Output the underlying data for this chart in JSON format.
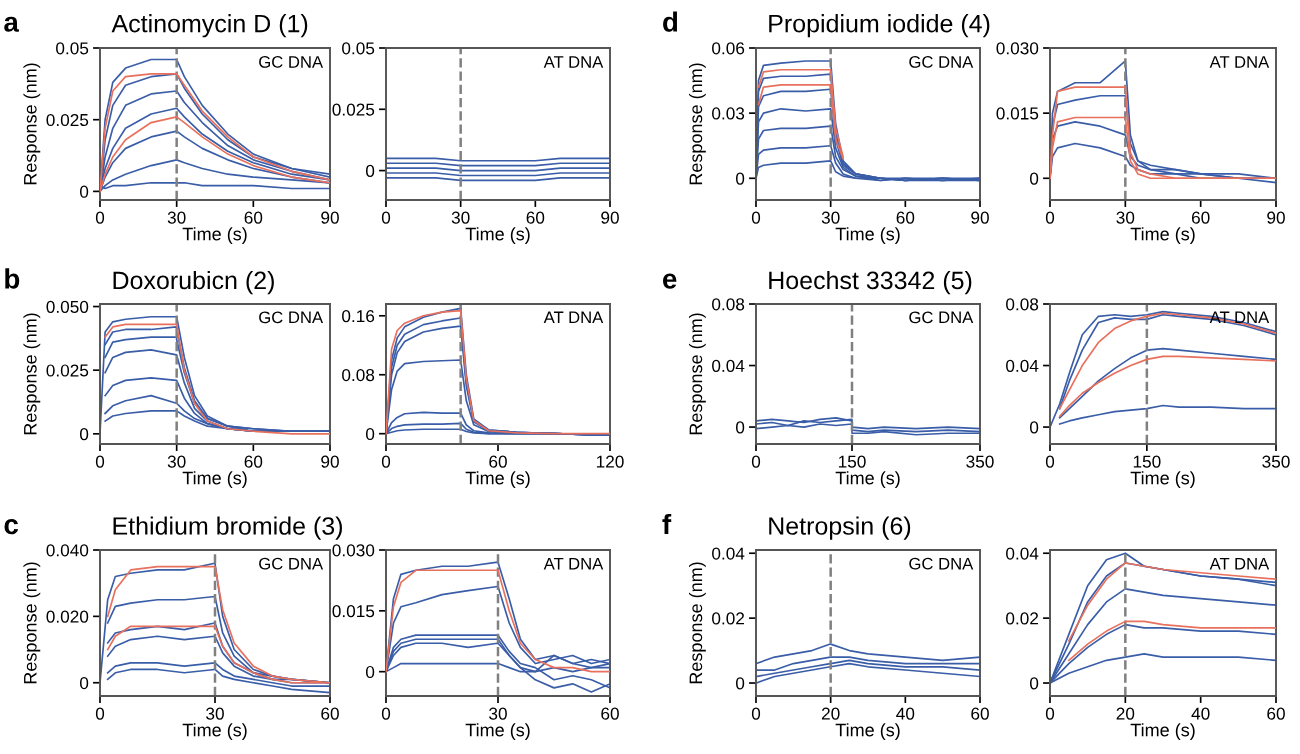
{
  "chart_data": [
    {
      "type": "line",
      "title": "Actinomycin D (1)",
      "ylabel": "Response (nm)",
      "xlabel": "Time (s)",
      "annotations": [
        "a",
        "GC DNA"
      ],
      "xlim": [
        0,
        90
      ],
      "xticks": [
        0,
        30,
        60,
        90
      ],
      "ylim": [
        -0.003,
        0.05
      ],
      "yticks": [
        0,
        0.025,
        0.05
      ],
      "grid": false,
      "legend": false,
      "line_style": "solid",
      "marker": "none",
      "ref_lines": [
        {
          "axis": "x",
          "value": 30,
          "color": "#808080",
          "line_style": "dashed"
        }
      ],
      "x": [
        0,
        2,
        5,
        10,
        20,
        30,
        33,
        40,
        50,
        60,
        75,
        90
      ],
      "series": [
        {
          "color": "#e8705c",
          "values": [
            0,
            0.022,
            0.035,
            0.04,
            0.041,
            0.041,
            0.037,
            0.028,
            0.019,
            0.012,
            0.007,
            0.004
          ]
        },
        {
          "color": "#e8705c",
          "values": [
            0,
            0.006,
            0.012,
            0.018,
            0.024,
            0.026,
            0.024,
            0.019,
            0.013,
            0.009,
            0.005,
            0.003
          ]
        },
        {
          "color": "#3a5da8",
          "values": [
            0,
            0.025,
            0.038,
            0.043,
            0.046,
            0.046,
            0.04,
            0.03,
            0.02,
            0.013,
            0.008,
            0.005
          ]
        },
        {
          "color": "#3a5da8",
          "values": [
            0,
            0.018,
            0.03,
            0.037,
            0.04,
            0.041,
            0.036,
            0.027,
            0.018,
            0.012,
            0.008,
            0.006
          ]
        },
        {
          "color": "#3a5da8",
          "values": [
            0,
            0.012,
            0.022,
            0.03,
            0.034,
            0.035,
            0.031,
            0.024,
            0.016,
            0.011,
            0.007,
            0.004
          ]
        },
        {
          "color": "#3a5da8",
          "values": [
            0,
            0.008,
            0.015,
            0.022,
            0.027,
            0.029,
            0.026,
            0.02,
            0.014,
            0.01,
            0.006,
            0.004
          ]
        },
        {
          "color": "#3a5da8",
          "values": [
            0,
            0.005,
            0.01,
            0.015,
            0.019,
            0.021,
            0.019,
            0.015,
            0.011,
            0.008,
            0.005,
            0.003
          ]
        },
        {
          "color": "#3a5da8",
          "values": [
            0,
            0.002,
            0.004,
            0.006,
            0.009,
            0.011,
            0.01,
            0.008,
            0.006,
            0.005,
            0.004,
            0.003
          ]
        },
        {
          "color": "#3a5da8",
          "values": [
            0.002,
            0.001,
            0.002,
            0.002,
            0.003,
            0.003,
            0.003,
            0.002,
            0.002,
            0.002,
            0.001,
            0.001
          ]
        }
      ]
    },
    {
      "type": "line",
      "xlabel": "Time (s)",
      "annotations": [
        "AT DNA"
      ],
      "xlim": [
        0,
        90
      ],
      "xticks": [
        0,
        30,
        60,
        90
      ],
      "ylim": [
        -0.012,
        0.05
      ],
      "yticks": [
        0,
        0.025,
        0.05
      ],
      "grid": false,
      "legend": false,
      "line_style": "solid",
      "marker": "none",
      "ref_lines": [
        {
          "axis": "x",
          "value": 30,
          "color": "#808080",
          "line_style": "dashed"
        }
      ],
      "x": [
        0,
        10,
        20,
        30,
        40,
        50,
        60,
        70,
        80,
        90
      ],
      "series": [
        {
          "color": "#3a5da8",
          "values": [
            0.005,
            0.005,
            0.005,
            0.004,
            0.004,
            0.004,
            0.004,
            0.005,
            0.005,
            0.005
          ]
        },
        {
          "color": "#3a5da8",
          "values": [
            -0.003,
            -0.003,
            -0.003,
            -0.004,
            -0.004,
            -0.004,
            -0.004,
            -0.003,
            -0.003,
            -0.003
          ]
        },
        {
          "color": "#3a5da8",
          "values": [
            0.001,
            0.001,
            0.001,
            0,
            0,
            0,
            0,
            0.001,
            0.001,
            0.001
          ]
        },
        {
          "color": "#3a5da8",
          "values": [
            -0.001,
            -0.001,
            -0.001,
            -0.002,
            -0.002,
            -0.002,
            -0.002,
            -0.001,
            -0.001,
            -0.001
          ]
        },
        {
          "color": "#3a5da8",
          "values": [
            0.003,
            0.003,
            0.003,
            0.002,
            0.002,
            0.002,
            0.002,
            0.003,
            0.003,
            0.003
          ]
        }
      ]
    },
    {
      "type": "line",
      "title": "Propidium iodide (4)",
      "ylabel": "Response (nm)",
      "xlabel": "Time (s)",
      "annotations": [
        "d",
        "GC DNA"
      ],
      "xlim": [
        0,
        90
      ],
      "xticks": [
        0,
        30,
        60,
        90
      ],
      "ylim": [
        -0.01,
        0.06
      ],
      "yticks": [
        0,
        0.03,
        0.06
      ],
      "grid": false,
      "legend": false,
      "line_style": "solid",
      "marker": "none",
      "ref_lines": [
        {
          "axis": "x",
          "value": 30,
          "color": "#808080",
          "line_style": "dashed"
        }
      ],
      "x": [
        0,
        1,
        3,
        10,
        20,
        29.9,
        30,
        32,
        35,
        40,
        50,
        60,
        75,
        90
      ],
      "series": [
        {
          "color": "#e8705c",
          "values": [
            null,
            0.042,
            0.049,
            0.05,
            0.05,
            0.05,
            0.05,
            0.023,
            0.01,
            null,
            null,
            null,
            null,
            null
          ]
        },
        {
          "color": "#e8705c",
          "values": [
            null,
            0.034,
            0.042,
            0.043,
            0.043,
            0.043,
            0.043,
            0.018,
            0.009,
            null,
            null,
            null,
            null,
            null
          ]
        },
        {
          "color": "#3a5da8",
          "values": [
            0,
            0.045,
            0.052,
            0.053,
            0.054,
            0.054,
            0.054,
            0.025,
            0.008,
            0.002,
            0,
            -0.001,
            0,
            -0.001
          ]
        },
        {
          "color": "#3a5da8",
          "values": [
            0,
            0.04,
            0.046,
            0.047,
            0.047,
            0.048,
            0.048,
            0.021,
            0.007,
            0.002,
            0,
            -0.001,
            -0.001,
            0
          ]
        },
        {
          "color": "#3a5da8",
          "values": [
            0,
            0.033,
            0.038,
            0.04,
            0.04,
            0.041,
            0.041,
            0.018,
            0.006,
            0.002,
            0,
            0,
            -0.001,
            -0.001
          ]
        },
        {
          "color": "#3a5da8",
          "values": [
            0,
            0.026,
            0.03,
            0.032,
            0.031,
            0.032,
            0.032,
            0.014,
            0.005,
            0.001,
            0,
            -0.001,
            0,
            -0.001
          ]
        },
        {
          "color": "#3a5da8",
          "values": [
            0,
            0.018,
            0.022,
            0.023,
            0.023,
            0.024,
            0.024,
            0.01,
            0.004,
            0.001,
            -0.001,
            0,
            -0.001,
            0
          ]
        },
        {
          "color": "#3a5da8",
          "values": [
            0,
            0.011,
            0.013,
            0.014,
            0.014,
            0.015,
            0.015,
            0.007,
            0.002,
            0,
            -0.001,
            0,
            0,
            -0.001
          ]
        },
        {
          "color": "#3a5da8",
          "values": [
            0,
            0.005,
            0.006,
            0.007,
            0.007,
            0.008,
            0.008,
            0.003,
            0.001,
            0,
            0,
            -0.001,
            0,
            0
          ]
        }
      ]
    },
    {
      "type": "line",
      "xlabel": "Time (s)",
      "annotations": [
        "AT DNA"
      ],
      "xlim": [
        0,
        90
      ],
      "xticks": [
        0,
        30,
        60,
        90
      ],
      "ylim": [
        -0.005,
        0.03
      ],
      "yticks": [
        0,
        {
          "value": 0.015,
          "label": "0.015"
        },
        {
          "value": 0.03,
          "label": "0.030"
        }
      ],
      "grid": false,
      "legend": false,
      "line_style": "solid",
      "marker": "none",
      "ref_lines": [
        {
          "axis": "x",
          "value": 30,
          "color": "#808080",
          "line_style": "dashed"
        }
      ],
      "x": [
        0,
        1,
        3,
        10,
        20,
        29.9,
        30,
        32,
        35,
        40,
        50,
        60,
        75,
        90
      ],
      "series": [
        {
          "color": "#e8705c",
          "values": [
            0,
            0.01,
            0.02,
            0.021,
            0.021,
            0.021,
            0.021,
            0.006,
            0.002,
            0.001,
            0,
            0,
            0,
            0
          ]
        },
        {
          "color": "#e8705c",
          "values": [
            0,
            0.007,
            0.013,
            0.014,
            0.014,
            0.014,
            0.014,
            0.004,
            0.001,
            0,
            0,
            0,
            0,
            0
          ]
        },
        {
          "color": "#3a5da8",
          "values": [
            0,
            0.015,
            0.02,
            0.022,
            0.022,
            0.027,
            0.027,
            0.01,
            0.004,
            0.003,
            0.002,
            0.001,
            0.001,
            0
          ]
        },
        {
          "color": "#3a5da8",
          "values": [
            0,
            0.012,
            0.017,
            0.018,
            0.019,
            0.019,
            0.019,
            0.008,
            0.004,
            0.002,
            0.002,
            0.001,
            0,
            0
          ]
        },
        {
          "color": "#3a5da8",
          "values": [
            0,
            0.009,
            0.012,
            0.013,
            0.012,
            0.01,
            0.01,
            0.005,
            0.003,
            0.002,
            0.001,
            0.001,
            0,
            0
          ]
        },
        {
          "color": "#3a5da8",
          "values": [
            0,
            0.005,
            0.007,
            0.008,
            0.007,
            0.005,
            0.005,
            0.003,
            0.002,
            0.001,
            0.001,
            0,
            0,
            -0.001
          ]
        }
      ]
    },
    {
      "type": "line",
      "title": "Doxorubicn (2)",
      "ylabel": "Response (nm)",
      "xlabel": "Time (s)",
      "annotations": [
        "b",
        "GC DNA"
      ],
      "xlim": [
        0,
        90
      ],
      "xticks": [
        0,
        30,
        60,
        90
      ],
      "ylim": [
        -0.004,
        0.051
      ],
      "yticks": [
        0,
        {
          "value": 0.025,
          "label": "0.025"
        },
        {
          "value": 0.05,
          "label": "0.050"
        }
      ],
      "grid": false,
      "legend": false,
      "line_style": "solid",
      "marker": "none",
      "ref_lines": [
        {
          "axis": "x",
          "value": 30,
          "color": "#808080",
          "line_style": "dashed"
        }
      ],
      "x": [
        0,
        2,
        5,
        10,
        20,
        29.9,
        30,
        33,
        37,
        42,
        50,
        60,
        75,
        90
      ],
      "series": [
        {
          "color": "#e8705c",
          "values": [
            null,
            0.038,
            0.042,
            0.043,
            0.043,
            0.043,
            0.043,
            0.025,
            0.012,
            0.005,
            0.002,
            0.001,
            0,
            0
          ]
        },
        {
          "color": "#3a5da8",
          "values": [
            0,
            0.04,
            0.044,
            0.045,
            0.046,
            0.046,
            0.046,
            0.03,
            0.015,
            0.007,
            0.003,
            0.002,
            0.001,
            0.001
          ]
        },
        {
          "color": "#3a5da8",
          "values": [
            null,
            0.035,
            0.04,
            0.041,
            0.041,
            0.042,
            0.041,
            0.026,
            0.013,
            0.006,
            0.003,
            0.002,
            0.001,
            0.001
          ]
        },
        {
          "color": "#3a5da8",
          "values": [
            null,
            0.03,
            0.036,
            0.037,
            0.038,
            0.038,
            0.037,
            0.024,
            0.012,
            0.006,
            0.003,
            0.001,
            0.001,
            0.001
          ]
        },
        {
          "color": "#3a5da8",
          "values": [
            null,
            0.024,
            0.03,
            0.032,
            0.033,
            0.031,
            0.031,
            0.02,
            0.01,
            0.005,
            0.002,
            0.001,
            0.001,
            0.001
          ]
        },
        {
          "color": "#3a5da8",
          "values": [
            null,
            0.015,
            0.019,
            0.021,
            0.022,
            0.021,
            0.021,
            0.014,
            0.008,
            0.004,
            0.002,
            0.001,
            0.001,
            0.001
          ]
        },
        {
          "color": "#3a5da8",
          "values": [
            null,
            0.008,
            0.011,
            0.013,
            0.015,
            0.012,
            0.012,
            0.009,
            0.006,
            0.004,
            0.002,
            0.001,
            0.001,
            0.001
          ]
        },
        {
          "color": "#3a5da8",
          "values": [
            null,
            0.005,
            0.007,
            0.008,
            0.009,
            0.009,
            0.009,
            0.007,
            0.005,
            0.003,
            0.002,
            0.001,
            0.001,
            0.001
          ]
        }
      ]
    },
    {
      "type": "line",
      "xlabel": "Time (s)",
      "annotations": [
        "AT DNA"
      ],
      "xlim": [
        0,
        120
      ],
      "xticks": [
        0,
        60,
        120
      ],
      "ylim": [
        -0.014,
        0.176
      ],
      "yticks": [
        0,
        0.08,
        0.16
      ],
      "grid": false,
      "legend": false,
      "line_style": "solid",
      "marker": "none",
      "ref_lines": [
        {
          "axis": "x",
          "value": 40,
          "color": "#808080",
          "line_style": "dashed"
        }
      ],
      "x": [
        0,
        3,
        6,
        10,
        20,
        30,
        39.9,
        40,
        43,
        47,
        55,
        70,
        90,
        120
      ],
      "series": [
        {
          "color": "#e8705c",
          "values": [
            0,
            0.115,
            0.14,
            0.15,
            0.16,
            0.165,
            0.167,
            0.167,
            0.075,
            0.018,
            0.004,
            0.001,
            0,
            0
          ]
        },
        {
          "color": "#3a5da8",
          "values": [
            0,
            0.1,
            0.13,
            0.145,
            0.158,
            0.165,
            0.17,
            0.17,
            0.08,
            0.02,
            0.005,
            0.002,
            0,
            -0.002
          ]
        },
        {
          "color": "#3a5da8",
          "values": [
            0,
            0.09,
            0.12,
            0.135,
            0.148,
            0.153,
            0.157,
            0.157,
            0.07,
            0.018,
            0.005,
            0.002,
            0,
            -0.002
          ]
        },
        {
          "color": "#3a5da8",
          "values": [
            0,
            0.08,
            0.11,
            0.125,
            0.138,
            0.143,
            0.146,
            0.146,
            0.065,
            0.016,
            0.004,
            0.002,
            0,
            -0.002
          ]
        },
        {
          "color": "#3a5da8",
          "values": [
            0,
            0.06,
            0.085,
            0.095,
            0.098,
            0.099,
            0.1,
            0.1,
            0.045,
            0.012,
            0.003,
            0.001,
            0,
            -0.002
          ]
        },
        {
          "color": "#3a5da8",
          "values": [
            0,
            0.015,
            0.022,
            0.027,
            0.029,
            0.028,
            0.028,
            0.028,
            0.012,
            0.004,
            0.001,
            0,
            0,
            -0.002
          ]
        },
        {
          "color": "#3a5da8",
          "values": [
            0,
            0.007,
            0.01,
            0.012,
            0.013,
            0.013,
            0.014,
            0.014,
            0.006,
            0.002,
            0,
            0,
            0,
            -0.002
          ]
        },
        {
          "color": "#3a5da8",
          "values": [
            0,
            0.002,
            0.004,
            0.005,
            0.006,
            0.006,
            0.006,
            0.006,
            0.003,
            0.001,
            0,
            0,
            0,
            -0.002
          ]
        }
      ]
    },
    {
      "type": "line",
      "title": "Hoechst 33342 (5)",
      "ylabel": "Response (nm)",
      "xlabel": "Time (s)",
      "annotations": [
        "e",
        "GC DNA"
      ],
      "xlim": [
        0,
        350
      ],
      "xticks": [
        0,
        150,
        350
      ],
      "ylim": [
        -0.011,
        0.08
      ],
      "yticks": [
        0,
        0.04,
        0.08
      ],
      "grid": false,
      "legend": false,
      "line_style": "solid",
      "marker": "none",
      "ref_lines": [
        {
          "axis": "x",
          "value": 150,
          "color": "#808080",
          "line_style": "dashed"
        }
      ],
      "x": [
        0,
        25,
        50,
        75,
        100,
        125,
        149.9,
        150,
        175,
        200,
        250,
        300,
        350
      ],
      "series": [
        {
          "color": "#3a5da8",
          "values": [
            0.002,
            0.003,
            0.001,
            0.004,
            0.003,
            0.004,
            0.005,
            -0.002,
            -0.003,
            -0.002,
            -0.003,
            -0.002,
            -0.003
          ]
        },
        {
          "color": "#3a5da8",
          "values": [
            0.004,
            0.005,
            0.004,
            0.003,
            0.005,
            0.006,
            0.004,
            0,
            -0.001,
            0,
            -0.001,
            0,
            -0.001
          ]
        },
        {
          "color": "#3a5da8",
          "values": [
            -0.001,
            0,
            0.001,
            0,
            0.002,
            0.001,
            0.002,
            -0.004,
            -0.004,
            -0.003,
            -0.005,
            -0.004,
            -0.004
          ]
        }
      ]
    },
    {
      "type": "line",
      "xlabel": "Time (s)",
      "annotations": [
        "AT DNA"
      ],
      "xlim": [
        0,
        350
      ],
      "xticks": [
        0,
        150,
        350
      ],
      "ylim": [
        -0.011,
        0.08
      ],
      "yticks": [
        0,
        0.04,
        0.08
      ],
      "grid": false,
      "legend": false,
      "line_style": "solid",
      "marker": "none",
      "ref_lines": [
        {
          "axis": "x",
          "value": 150,
          "color": "#808080",
          "line_style": "dashed"
        }
      ],
      "x": [
        0,
        15,
        30,
        50,
        75,
        100,
        125,
        150,
        175,
        200,
        250,
        300,
        350
      ],
      "series": [
        {
          "color": "#e8705c",
          "values": [
            null,
            0.012,
            0.024,
            0.04,
            0.055,
            0.064,
            0.069,
            0.072,
            0.074,
            0.073,
            0.071,
            0.067,
            0.061
          ]
        },
        {
          "color": "#e8705c",
          "values": [
            null,
            0.007,
            0.014,
            0.022,
            0.029,
            0.035,
            0.04,
            0.044,
            0.046,
            0.046,
            0.045,
            0.044,
            0.043
          ]
        },
        {
          "color": "#3a5da8",
          "values": [
            0,
            0.015,
            0.035,
            0.06,
            0.072,
            0.073,
            0.072,
            0.073,
            0.075,
            0.074,
            0.072,
            0.068,
            0.062
          ]
        },
        {
          "color": "#3a5da8",
          "values": [
            null,
            0.012,
            0.03,
            0.05,
            0.068,
            0.071,
            0.07,
            0.07,
            0.073,
            0.072,
            0.07,
            0.066,
            0.06
          ]
        },
        {
          "color": "#3a5da8",
          "values": [
            null,
            0.006,
            0.012,
            0.02,
            0.03,
            0.038,
            0.045,
            0.05,
            0.051,
            0.05,
            0.048,
            0.046,
            0.044
          ]
        },
        {
          "color": "#3a5da8",
          "values": [
            null,
            0.002,
            0.004,
            0.006,
            0.008,
            0.01,
            0.011,
            0.012,
            0.014,
            0.013,
            0.013,
            0.012,
            0.012
          ]
        }
      ]
    },
    {
      "type": "line",
      "title": "Ethidium bromide (3)",
      "ylabel": "Response (nm)",
      "xlabel": "Time (s)",
      "annotations": [
        "c",
        "GC DNA"
      ],
      "xlim": [
        0,
        60
      ],
      "xticks": [
        0,
        30,
        60
      ],
      "ylim": [
        -0.004,
        0.04
      ],
      "yticks": [
        0,
        {
          "value": 0.02,
          "label": "0.020"
        },
        {
          "value": 0.04,
          "label": "0.040"
        }
      ],
      "grid": false,
      "legend": false,
      "line_style": "solid",
      "marker": "none",
      "ref_lines": [
        {
          "axis": "x",
          "value": 30,
          "color": "#808080",
          "line_style": "dashed"
        }
      ],
      "x": [
        0,
        2,
        4,
        8,
        15,
        22,
        29.9,
        30,
        32,
        35,
        40,
        45,
        50,
        60
      ],
      "series": [
        {
          "color": "#e8705c",
          "values": [
            null,
            0.02,
            0.028,
            0.034,
            0.035,
            0.035,
            0.035,
            0.035,
            0.022,
            0.012,
            0.005,
            0.002,
            0.001,
            0
          ]
        },
        {
          "color": "#e8705c",
          "values": [
            null,
            0.01,
            0.014,
            0.017,
            0.017,
            0.017,
            0.017,
            0.017,
            0.011,
            0.006,
            0.003,
            0.001,
            0,
            0
          ]
        },
        {
          "color": "#3a5da8",
          "values": [
            0,
            0.025,
            0.032,
            0.033,
            0.034,
            0.034,
            0.036,
            0.036,
            0.02,
            0.01,
            0.004,
            0.002,
            0.001,
            0
          ]
        },
        {
          "color": "#3a5da8",
          "values": [
            null,
            0.018,
            0.023,
            0.024,
            0.025,
            0.025,
            0.026,
            0.026,
            0.015,
            0.008,
            0.003,
            0.002,
            0.001,
            0
          ]
        },
        {
          "color": "#3a5da8",
          "values": [
            null,
            0.012,
            0.015,
            0.016,
            0.017,
            0.016,
            0.018,
            0.018,
            0.011,
            0.006,
            0.003,
            0.001,
            0.001,
            0
          ]
        },
        {
          "color": "#3a5da8",
          "values": [
            null,
            0.008,
            0.011,
            0.013,
            0.014,
            0.013,
            0.014,
            0.014,
            0.009,
            0.005,
            0.002,
            0.001,
            0,
            0
          ]
        },
        {
          "color": "#3a5da8",
          "values": [
            null,
            0.003,
            0.005,
            0.006,
            0.006,
            0.005,
            0.006,
            0.006,
            0.004,
            0.002,
            0.001,
            0,
            -0.001,
            -0.001
          ]
        },
        {
          "color": "#3a5da8",
          "values": [
            null,
            0.001,
            0.003,
            0.004,
            0.004,
            0.003,
            0.004,
            0.004,
            0.002,
            0.001,
            0,
            -0.001,
            -0.002,
            -0.003
          ]
        }
      ]
    },
    {
      "type": "line",
      "xlabel": "Time (s)",
      "annotations": [
        "AT DNA"
      ],
      "xlim": [
        0,
        60
      ],
      "xticks": [
        0,
        30,
        60
      ],
      "ylim": [
        -0.006,
        0.03
      ],
      "yticks": [
        0,
        {
          "value": 0.015,
          "label": "0.015"
        },
        {
          "value": 0.03,
          "label": "0.030"
        }
      ],
      "grid": false,
      "legend": false,
      "line_style": "solid",
      "marker": "none",
      "ref_lines": [
        {
          "axis": "x",
          "value": 30,
          "color": "#808080",
          "line_style": "dashed"
        }
      ],
      "x": [
        0,
        2,
        4,
        8,
        15,
        22,
        29.9,
        30,
        33,
        36,
        40,
        45,
        50,
        55,
        60
      ],
      "series": [
        {
          "color": "#e8705c",
          "values": [
            0,
            0.016,
            0.022,
            0.025,
            0.025,
            0.025,
            0.025,
            0.025,
            0.015,
            0.007,
            0.003,
            0.001,
            0.001,
            0,
            0
          ]
        },
        {
          "color": "#3a5da8",
          "values": [
            0,
            0.018,
            0.024,
            0.025,
            0.026,
            0.026,
            0.027,
            0.027,
            0.018,
            0.008,
            0.003,
            0.004,
            0.002,
            0.003,
            0.002
          ]
        },
        {
          "color": "#3a5da8",
          "values": [
            0,
            0.012,
            0.016,
            0.017,
            0.019,
            0.02,
            0.021,
            0.021,
            0.012,
            0.006,
            0.002,
            0.003,
            0.004,
            0.002,
            0.003
          ]
        },
        {
          "color": "#3a5da8",
          "values": [
            0,
            0.006,
            0.008,
            0.009,
            0.009,
            0.009,
            0.009,
            0.009,
            0.005,
            0.002,
            0.001,
            -0.002,
            -0.001,
            -0.002,
            -0.004
          ]
        },
        {
          "color": "#3a5da8",
          "values": [
            0,
            0.005,
            0.007,
            0.008,
            0.008,
            0.008,
            0.008,
            0.008,
            0.004,
            0.001,
            0,
            0.004,
            0.002,
            0.001,
            0.001
          ]
        },
        {
          "color": "#3a5da8",
          "values": [
            0,
            0.004,
            0.006,
            0.007,
            0.007,
            0.006,
            0.007,
            0.007,
            0.004,
            0.001,
            -0.002,
            -0.004,
            -0.003,
            -0.005,
            -0.003
          ]
        },
        {
          "color": "#3a5da8",
          "values": [
            0,
            0.001,
            0.002,
            0.002,
            0.002,
            0.002,
            0.002,
            0.002,
            0.001,
            0,
            0,
            0.001,
            0,
            0.001,
            0.002
          ]
        }
      ]
    },
    {
      "type": "line",
      "title": "Netropsin (6)",
      "ylabel": "Response (nm)",
      "xlabel": "Time (s)",
      "annotations": [
        "f",
        "GC DNA"
      ],
      "xlim": [
        0,
        60
      ],
      "xticks": [
        0,
        20,
        40,
        60
      ],
      "ylim": [
        -0.004,
        0.041
      ],
      "yticks": [
        0,
        0.02,
        0.04
      ],
      "grid": false,
      "legend": false,
      "line_style": "solid",
      "marker": "none",
      "ref_lines": [
        {
          "axis": "x",
          "value": 20,
          "color": "#808080",
          "line_style": "dashed"
        }
      ],
      "x": [
        0,
        5,
        10,
        15,
        19.9,
        20,
        25,
        30,
        40,
        50,
        60
      ],
      "series": [
        {
          "color": "#3a5da8",
          "values": [
            0.006,
            0.008,
            0.009,
            0.01,
            0.012,
            0.012,
            0.01,
            0.009,
            0.008,
            0.007,
            0.008
          ]
        },
        {
          "color": "#3a5da8",
          "values": [
            0.004,
            0.004,
            0.006,
            0.007,
            0.008,
            0.008,
            0.008,
            0.007,
            0.006,
            0.006,
            0.006
          ]
        },
        {
          "color": "#3a5da8",
          "values": [
            0.002,
            0.003,
            0.004,
            0.005,
            0.006,
            0.006,
            0.007,
            0.006,
            0.005,
            0.005,
            0.004
          ]
        },
        {
          "color": "#3a5da8",
          "values": [
            0,
            0.002,
            0.003,
            0.004,
            0.005,
            0.005,
            0.006,
            0.005,
            0.004,
            0.003,
            0.002
          ]
        }
      ]
    },
    {
      "type": "line",
      "xlabel": "Time (s)",
      "annotations": [
        "AT DNA"
      ],
      "xlim": [
        0,
        60
      ],
      "xticks": [
        0,
        20,
        40,
        60
      ],
      "ylim": [
        -0.004,
        0.041
      ],
      "yticks": [
        0,
        0.02,
        0.04
      ],
      "grid": false,
      "legend": false,
      "line_style": "solid",
      "marker": "none",
      "ref_lines": [
        {
          "axis": "x",
          "value": 20,
          "color": "#808080",
          "line_style": "dashed"
        }
      ],
      "x": [
        0,
        5,
        10,
        15,
        20,
        25,
        30,
        40,
        50,
        60
      ],
      "series": [
        {
          "color": "#e8705c",
          "values": [
            null,
            0.013,
            0.024,
            0.032,
            0.037,
            0.036,
            0.035,
            0.034,
            0.033,
            0.032
          ]
        },
        {
          "color": "#e8705c",
          "values": [
            null,
            0.007,
            0.012,
            0.016,
            0.019,
            0.019,
            0.018,
            0.017,
            0.017,
            0.017
          ]
        },
        {
          "color": "#3a5da8",
          "values": [
            0,
            0.015,
            0.03,
            0.038,
            0.04,
            0.036,
            0.035,
            0.033,
            0.032,
            0.03
          ]
        },
        {
          "color": "#3a5da8",
          "values": [
            0,
            0.012,
            0.025,
            0.033,
            0.037,
            0.036,
            0.035,
            0.033,
            0.032,
            0.031
          ]
        },
        {
          "color": "#3a5da8",
          "values": [
            0,
            0.009,
            0.018,
            0.025,
            0.029,
            0.028,
            0.027,
            0.026,
            0.025,
            0.024
          ]
        },
        {
          "color": "#3a5da8",
          "values": [
            0,
            0.006,
            0.011,
            0.015,
            0.018,
            0.017,
            0.017,
            0.016,
            0.016,
            0.015
          ]
        },
        {
          "color": "#3a5da8",
          "values": [
            0,
            0.003,
            0.005,
            0.007,
            0.008,
            0.009,
            0.008,
            0.008,
            0.008,
            0.007
          ]
        }
      ]
    }
  ]
}
